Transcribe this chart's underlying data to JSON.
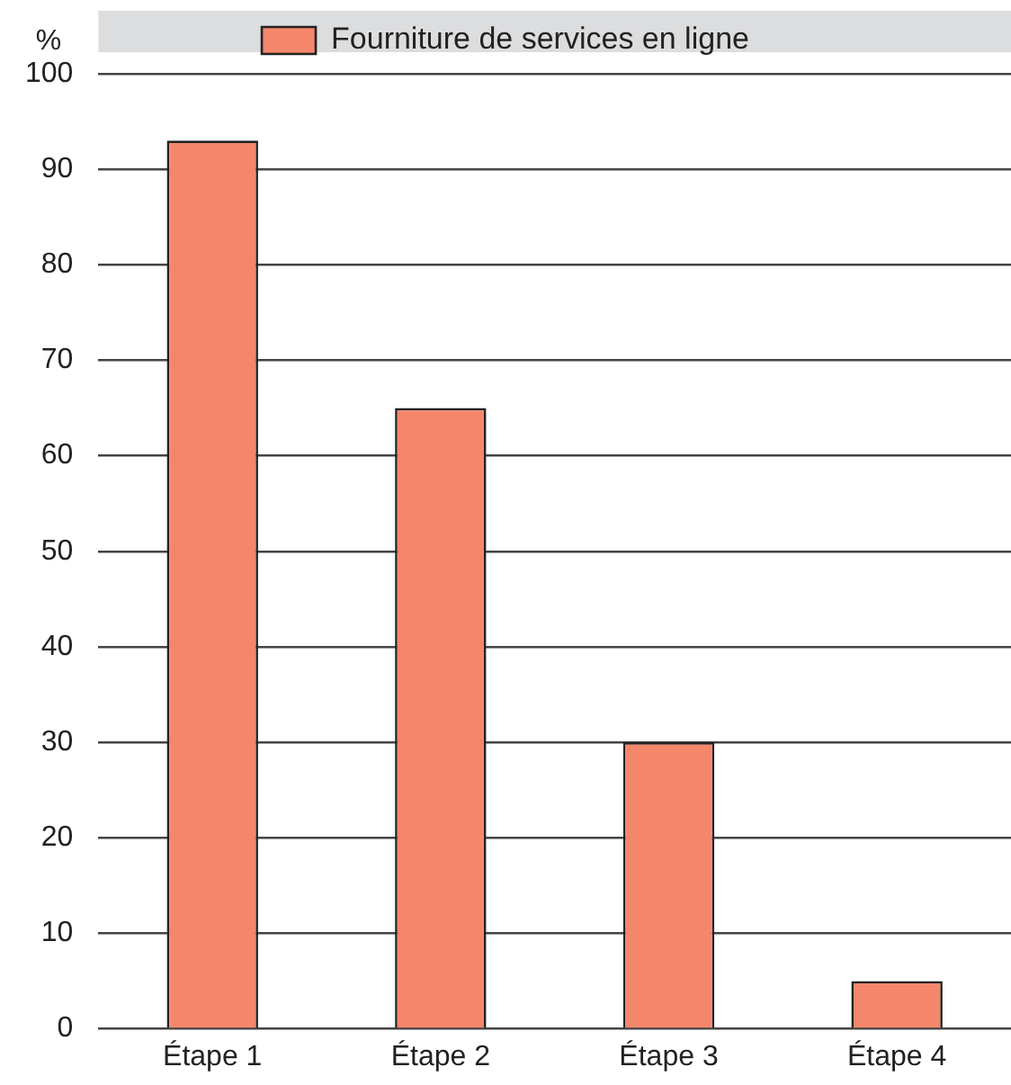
{
  "chart_data": {
    "type": "bar",
    "ylabel": "%",
    "categories": [
      "Étape 1",
      "Étape 2",
      "Étape 3",
      "Étape 4"
    ],
    "series": [
      {
        "name": "Fourniture de services en ligne",
        "color": "#f4866c",
        "values": [
          93,
          65,
          30,
          5
        ]
      }
    ],
    "ylim": [
      0,
      100
    ],
    "yticks": [
      0,
      10,
      20,
      30,
      40,
      50,
      60,
      70,
      80,
      90,
      100
    ],
    "grid": "y",
    "legend": "top"
  }
}
